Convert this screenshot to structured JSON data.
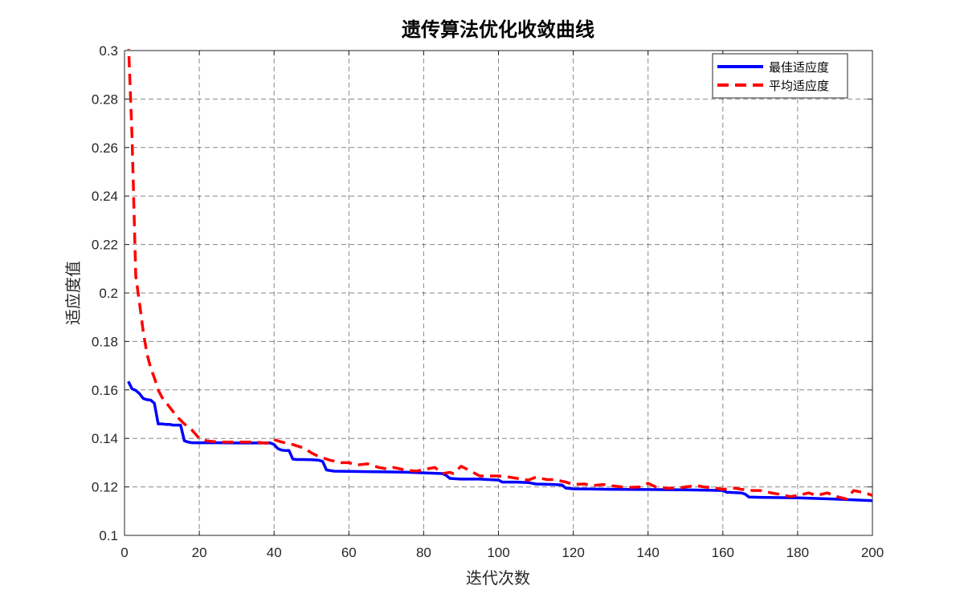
{
  "chart_data": {
    "type": "line",
    "title": "遗传算法优化收敛曲线",
    "xlabel": "迭代次数",
    "ylabel": "适应度值",
    "xlim": [
      0,
      200
    ],
    "ylim": [
      0.1,
      0.3
    ],
    "xticks": [
      0,
      20,
      40,
      60,
      80,
      100,
      120,
      140,
      160,
      180,
      200
    ],
    "yticks": [
      0.1,
      0.12,
      0.14,
      0.16,
      0.18,
      0.2,
      0.22,
      0.24,
      0.26,
      0.28,
      0.3
    ],
    "xtick_labels": [
      "0",
      "20",
      "40",
      "60",
      "80",
      "100",
      "120",
      "140",
      "160",
      "180",
      "200"
    ],
    "ytick_labels": [
      "0.1",
      "0.12",
      "0.14",
      "0.16",
      "0.18",
      "0.2",
      "0.22",
      "0.24",
      "0.26",
      "0.28",
      "0.3"
    ],
    "grid": true,
    "legend_position": "top-right",
    "series": [
      {
        "name": "最佳适应度",
        "color": "#0000ff",
        "style": "solid",
        "x": [
          1,
          2,
          3,
          4,
          5,
          6,
          7,
          8,
          9,
          10,
          11,
          12,
          13,
          14,
          15,
          16,
          17,
          18,
          20,
          25,
          30,
          35,
          39,
          40,
          41,
          42,
          43,
          44,
          45,
          46,
          48,
          50,
          52,
          53,
          54,
          56,
          60,
          65,
          70,
          75,
          80,
          85,
          86,
          87,
          90,
          95,
          100,
          101,
          105,
          108,
          110,
          115,
          117,
          118,
          120,
          125,
          130,
          140,
          150,
          160,
          161,
          165,
          166,
          167,
          170,
          180,
          190,
          200
        ],
        "y": [
          0.1635,
          0.1605,
          0.1598,
          0.1585,
          0.1565,
          0.156,
          0.1558,
          0.1545,
          0.146,
          0.146,
          0.1458,
          0.1458,
          0.1455,
          0.1455,
          0.1455,
          0.139,
          0.1385,
          0.1382,
          0.1382,
          0.1382,
          0.1381,
          0.1381,
          0.1381,
          0.1375,
          0.1358,
          0.1352,
          0.135,
          0.135,
          0.1315,
          0.1313,
          0.1313,
          0.1312,
          0.131,
          0.1305,
          0.127,
          0.1265,
          0.1264,
          0.1263,
          0.1262,
          0.1261,
          0.1258,
          0.1255,
          0.1248,
          0.1235,
          0.1232,
          0.1232,
          0.1228,
          0.122,
          0.122,
          0.1218,
          0.1212,
          0.121,
          0.1208,
          0.1195,
          0.1192,
          0.1191,
          0.119,
          0.1189,
          0.1188,
          0.1185,
          0.1178,
          0.1175,
          0.117,
          0.1158,
          0.1157,
          0.1155,
          0.115,
          0.1143
        ]
      },
      {
        "name": "平均适应度",
        "color": "#ff0000",
        "style": "dashed",
        "x": [
          1,
          2,
          3,
          4,
          5,
          6,
          7,
          8,
          9,
          10,
          12,
          14,
          16,
          18,
          20,
          22,
          25,
          30,
          35,
          38,
          40,
          42,
          45,
          48,
          50,
          52,
          55,
          58,
          60,
          62,
          65,
          68,
          70,
          72,
          75,
          78,
          80,
          83,
          85,
          87,
          88,
          90,
          92,
          95,
          98,
          100,
          103,
          105,
          108,
          110,
          113,
          115,
          118,
          120,
          123,
          125,
          128,
          130,
          133,
          135,
          138,
          140,
          142,
          145,
          148,
          150,
          153,
          155,
          158,
          160,
          163,
          165,
          168,
          170,
          173,
          175,
          178,
          180,
          183,
          185,
          188,
          190,
          193,
          195,
          198,
          200
        ],
        "y": [
          0.305,
          0.265,
          0.207,
          0.196,
          0.184,
          0.175,
          0.169,
          0.165,
          0.16,
          0.157,
          0.153,
          0.149,
          0.146,
          0.1435,
          0.14,
          0.139,
          0.1385,
          0.1385,
          0.1385,
          0.138,
          0.1395,
          0.1385,
          0.1375,
          0.136,
          0.134,
          0.1325,
          0.131,
          0.13,
          0.13,
          0.129,
          0.1295,
          0.128,
          0.1275,
          0.128,
          0.127,
          0.1265,
          0.1272,
          0.128,
          0.1255,
          0.126,
          0.1255,
          0.1285,
          0.127,
          0.1245,
          0.1245,
          0.1245,
          0.124,
          0.1235,
          0.1228,
          0.124,
          0.123,
          0.123,
          0.122,
          0.121,
          0.1212,
          0.1205,
          0.121,
          0.1205,
          0.12,
          0.1198,
          0.12,
          0.1215,
          0.12,
          0.1195,
          0.1195,
          0.12,
          0.1205,
          0.12,
          0.1195,
          0.119,
          0.1195,
          0.119,
          0.1185,
          0.1185,
          0.1175,
          0.117,
          0.116,
          0.1165,
          0.1175,
          0.1165,
          0.1175,
          0.1162,
          0.115,
          0.1185,
          0.1175,
          0.1165
        ]
      }
    ]
  }
}
